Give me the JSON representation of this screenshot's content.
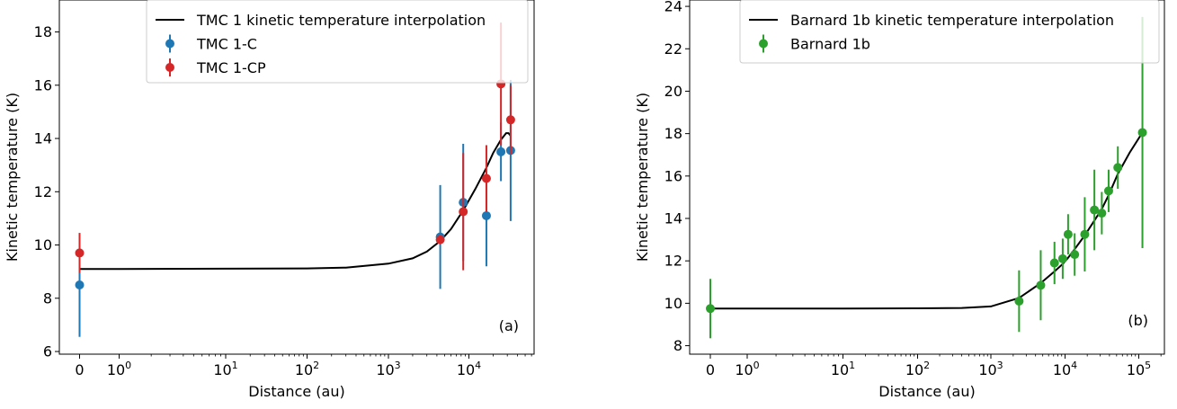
{
  "chart_data": [
    {
      "type": "scatter",
      "panel_label": "(a)",
      "xlabel": "Distance (au)",
      "ylabel": "Kinetic temperature (K)",
      "x_scale": "symlog",
      "ylim": [
        5.9,
        19.2
      ],
      "x_ticks": [
        {
          "value": 0,
          "base": "0",
          "exp": ""
        },
        {
          "value": 1,
          "base": "10",
          "exp": "0"
        },
        {
          "value": 10,
          "base": "10",
          "exp": "1"
        },
        {
          "value": 100,
          "base": "10",
          "exp": "2"
        },
        {
          "value": 1000,
          "base": "10",
          "exp": "3"
        },
        {
          "value": 10000,
          "base": "10",
          "exp": "4"
        }
      ],
      "y_ticks": [
        6,
        8,
        10,
        12,
        14,
        16,
        18
      ],
      "legend_position": "upper-right",
      "curve": {
        "name": "TMC 1 kinetic temperature interpolation",
        "color": "#000000",
        "x": [
          0,
          1,
          10,
          100,
          300,
          1000,
          2000,
          3000,
          4400,
          6000,
          8500,
          12000,
          16500,
          20000,
          25000,
          29000,
          31000,
          33000
        ],
        "y": [
          9.1,
          9.1,
          9.11,
          9.12,
          9.15,
          9.3,
          9.5,
          9.75,
          10.15,
          10.6,
          11.3,
          12.1,
          12.9,
          13.45,
          13.95,
          14.2,
          14.2,
          14.1
        ]
      },
      "series": [
        {
          "name": "TMC 1-C",
          "color": "#1f77b4",
          "points": [
            {
              "x": 0,
              "y": 8.5,
              "err": 1.95
            },
            {
              "x": 4400,
              "y": 10.3,
              "err": 1.95
            },
            {
              "x": 8500,
              "y": 11.6,
              "err": 2.2
            },
            {
              "x": 16500,
              "y": 11.1,
              "err": 1.9
            },
            {
              "x": 25000,
              "y": 13.5,
              "err": 1.1
            },
            {
              "x": 33000,
              "y": 13.55,
              "err": 2.65
            }
          ]
        },
        {
          "name": "TMC 1-CP",
          "color": "#d62728",
          "points": [
            {
              "x": 0,
              "y": 9.7,
              "err": 0.75
            },
            {
              "x": 4400,
              "y": 10.2,
              "err": 0.15
            },
            {
              "x": 8500,
              "y": 11.25,
              "err": 2.2
            },
            {
              "x": 16500,
              "y": 12.5,
              "err": 1.25
            },
            {
              "x": 25000,
              "y": 16.05,
              "err": 2.3
            },
            {
              "x": 33000,
              "y": 14.7,
              "err": 1.3
            }
          ]
        }
      ]
    },
    {
      "type": "scatter",
      "panel_label": "(b)",
      "xlabel": "Distance (au)",
      "ylabel": "Kinetic temperature (K)",
      "x_scale": "symlog",
      "ylim": [
        7.6,
        24.3
      ],
      "x_ticks": [
        {
          "value": 0,
          "base": "0",
          "exp": ""
        },
        {
          "value": 1,
          "base": "10",
          "exp": "0"
        },
        {
          "value": 10,
          "base": "10",
          "exp": "1"
        },
        {
          "value": 100,
          "base": "10",
          "exp": "2"
        },
        {
          "value": 1000,
          "base": "10",
          "exp": "3"
        },
        {
          "value": 10000,
          "base": "10",
          "exp": "4"
        },
        {
          "value": 100000,
          "base": "10",
          "exp": "5"
        }
      ],
      "y_ticks": [
        8,
        10,
        12,
        14,
        16,
        18,
        20,
        22,
        24
      ],
      "legend_position": "upper-right",
      "curve": {
        "name": "Barnard 1b kinetic temperature interpolation",
        "color": "#000000",
        "x": [
          0,
          1,
          10,
          100,
          400,
          1000,
          2400,
          4700,
          7200,
          9300,
          11000,
          13500,
          18500,
          25000,
          31500,
          39000,
          52000,
          75000,
          112000
        ],
        "y": [
          9.75,
          9.75,
          9.75,
          9.76,
          9.78,
          9.85,
          10.25,
          10.95,
          11.5,
          11.85,
          12.15,
          12.55,
          13.2,
          13.9,
          14.45,
          15.1,
          16.1,
          17.1,
          18.05
        ]
      },
      "series": [
        {
          "name": "Barnard 1b",
          "color": "#2ca02c",
          "points": [
            {
              "x": 0,
              "y": 9.75,
              "err": 1.4
            },
            {
              "x": 2400,
              "y": 10.1,
              "err": 1.45
            },
            {
              "x": 4700,
              "y": 10.85,
              "err": 1.65
            },
            {
              "x": 7200,
              "y": 11.9,
              "err": 1.0
            },
            {
              "x": 9300,
              "y": 12.1,
              "err": 0.95
            },
            {
              "x": 11000,
              "y": 13.25,
              "err": 0.95
            },
            {
              "x": 13500,
              "y": 12.3,
              "err": 1.0
            },
            {
              "x": 18500,
              "y": 13.25,
              "err": 1.75
            },
            {
              "x": 25000,
              "y": 14.4,
              "err": 1.9
            },
            {
              "x": 31500,
              "y": 14.25,
              "err": 1.0
            },
            {
              "x": 39000,
              "y": 15.3,
              "err": 1.0
            },
            {
              "x": 52000,
              "y": 16.4,
              "err": 1.0
            },
            {
              "x": 112000,
              "y": 18.05,
              "err": 5.45
            }
          ]
        }
      ]
    }
  ]
}
